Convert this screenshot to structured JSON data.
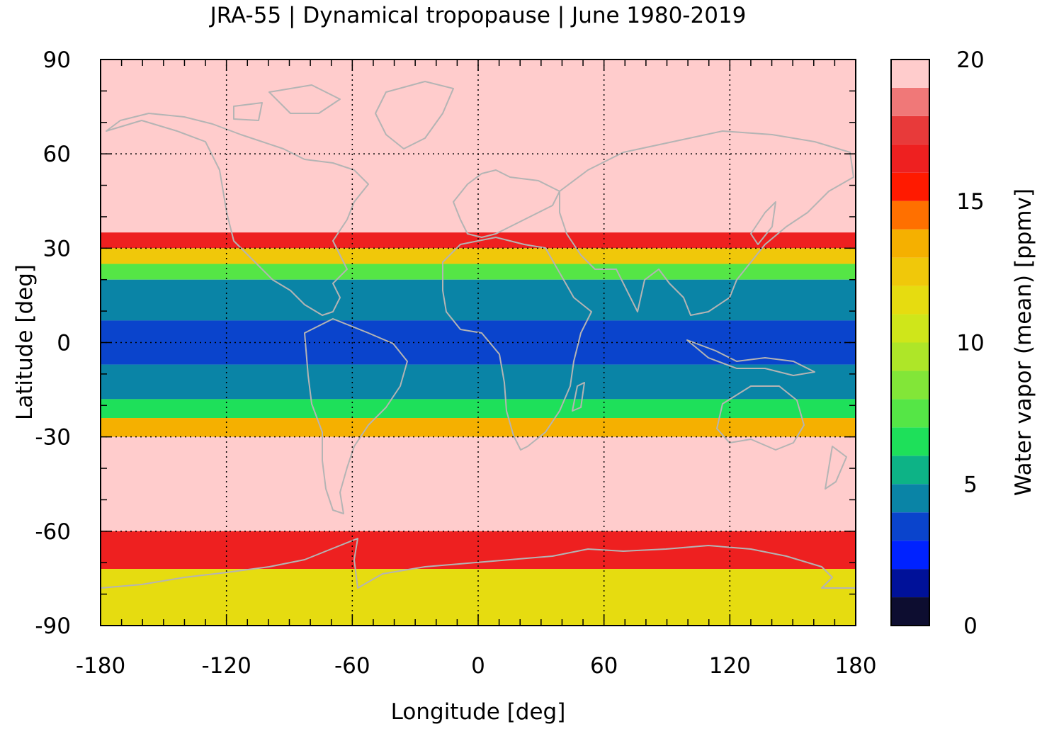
{
  "title": "JRA-55 | Dynamical tropopause | June 1980-2019",
  "xlabel": "Longitude [deg]",
  "ylabel": "Latitude [deg]",
  "colorbar_label": "Water vapor (mean) [ppmv]",
  "chart_data": {
    "type": "heatmap",
    "title": "JRA-55 | Dynamical tropopause | June 1980-2019",
    "xlabel": "Longitude [deg]",
    "ylabel": "Latitude [deg]",
    "xlim": [
      -180,
      180
    ],
    "ylim": [
      -90,
      90
    ],
    "x_ticks": [
      "-180",
      "-120",
      "-60",
      "0",
      "60",
      "120",
      "180"
    ],
    "y_ticks": [
      "90",
      "60",
      "30",
      "0",
      "-30",
      "-60",
      "-90"
    ],
    "grid": true,
    "colorbar": {
      "label": "Water vapor (mean) [ppmv]",
      "range": [
        0,
        20
      ],
      "ticks": [
        "0",
        "5",
        "10",
        "15",
        "20"
      ],
      "levels": [
        {
          "min": 0,
          "max": 1,
          "color": "#0d0d30"
        },
        {
          "min": 1,
          "max": 2,
          "color": "#001199"
        },
        {
          "min": 2,
          "max": 3,
          "color": "#0022ff"
        },
        {
          "min": 3,
          "max": 4,
          "color": "#0a44cc"
        },
        {
          "min": 4,
          "max": 5,
          "color": "#0a84a6"
        },
        {
          "min": 5,
          "max": 6,
          "color": "#0db386"
        },
        {
          "min": 6,
          "max": 7,
          "color": "#1ee05a"
        },
        {
          "min": 7,
          "max": 8,
          "color": "#55e646"
        },
        {
          "min": 8,
          "max": 9,
          "color": "#82e638"
        },
        {
          "min": 9,
          "max": 10,
          "color": "#aee628"
        },
        {
          "min": 10,
          "max": 11,
          "color": "#cfe61a"
        },
        {
          "min": 11,
          "max": 12,
          "color": "#e6dc10"
        },
        {
          "min": 12,
          "max": 13,
          "color": "#f0c80a"
        },
        {
          "min": 13,
          "max": 14,
          "color": "#f5b000"
        },
        {
          "min": 14,
          "max": 15,
          "color": "#ff7000"
        },
        {
          "min": 15,
          "max": 16,
          "color": "#ff1a00"
        },
        {
          "min": 16,
          "max": 17,
          "color": "#ee2020"
        },
        {
          "min": 17,
          "max": 18,
          "color": "#e83a3a"
        },
        {
          "min": 18,
          "max": 19,
          "color": "#f07878"
        },
        {
          "min": 19,
          "max": 20,
          "color": "#ffcccc"
        }
      ]
    },
    "approx_zonal_mean_bands": [
      {
        "lat_from": 90,
        "lat_to": 35,
        "value": 19.5
      },
      {
        "lat_from": 35,
        "lat_to": 30,
        "value": 16
      },
      {
        "lat_from": 30,
        "lat_to": 25,
        "value": 12
      },
      {
        "lat_from": 25,
        "lat_to": 20,
        "value": 7
      },
      {
        "lat_from": 20,
        "lat_to": 7,
        "value": 4.5
      },
      {
        "lat_from": 7,
        "lat_to": -7,
        "value": 3.5
      },
      {
        "lat_from": -7,
        "lat_to": -18,
        "value": 4.5
      },
      {
        "lat_from": -18,
        "lat_to": -24,
        "value": 6.5
      },
      {
        "lat_from": -24,
        "lat_to": -30,
        "value": 13
      },
      {
        "lat_from": -30,
        "lat_to": -60,
        "value": 19.5
      },
      {
        "lat_from": -60,
        "lat_to": -72,
        "value": 16.5
      },
      {
        "lat_from": -72,
        "lat_to": -90,
        "value": 11
      }
    ],
    "coastlines": "world coastlines overlaid in light grey"
  }
}
